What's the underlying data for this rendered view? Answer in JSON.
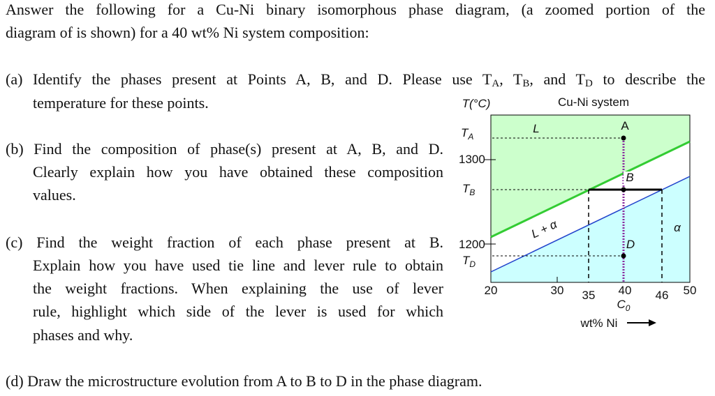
{
  "intro": [
    [
      "Answer the following for a Cu-Ni binary isomorphous phase diagram, (a zoomed portion of the"
    ],
    [
      "diagram of is shown) for a 40 wt% Ni system composition:"
    ]
  ],
  "questions": [
    {
      "lines": [
        [
          "(a) Identify the phases present at Points A, B, and D. Please use T",
          {
            "sub": "A"
          },
          ", T",
          {
            "sub": "B"
          },
          ", and T",
          {
            "sub": "D"
          },
          " to describe the"
        ],
        [
          "temperature for these points."
        ]
      ]
    },
    {
      "lines": [
        [
          "(b) Find the composition of phase(s) present at A, B, and D."
        ],
        [
          "Clearly explain how you have obtained these composition"
        ],
        [
          "values."
        ]
      ]
    },
    {
      "lines": [
        [
          "(c) Find the weight fraction of each phase present at B."
        ],
        [
          "Explain how you have used tie line and lever rule to obtain"
        ],
        [
          "the weight fractions. When explaining the use of lever"
        ],
        [
          "rule, highlight which side of the lever is used for which"
        ],
        [
          "phases and why."
        ]
      ]
    },
    {
      "lines": [
        [
          "(d) Draw the microstructure evolution from A to B to D in the phase diagram."
        ]
      ]
    }
  ],
  "figure": {
    "y_axis_label": "T(°C)",
    "title": "Cu-Ni system",
    "y_labels": [
      [
        "T",
        {
          "sub": "A"
        }
      ],
      [
        "1300"
      ],
      [
        "T",
        {
          "sub": "B"
        }
      ],
      [
        "1200"
      ],
      [
        "T",
        {
          "sub": "D"
        }
      ]
    ],
    "x_labels": [
      [
        "20"
      ],
      [
        "30"
      ],
      [
        "35"
      ],
      [
        "40"
      ],
      [
        "46"
      ],
      [
        "50"
      ]
    ],
    "c0_label": [
      "C",
      {
        "sub": "0"
      }
    ],
    "x_axis_label": "wt% Ni",
    "region_labels": [
      "L",
      "L + α",
      "α"
    ],
    "point_labels": [
      "A",
      "B",
      "D"
    ]
  }
}
